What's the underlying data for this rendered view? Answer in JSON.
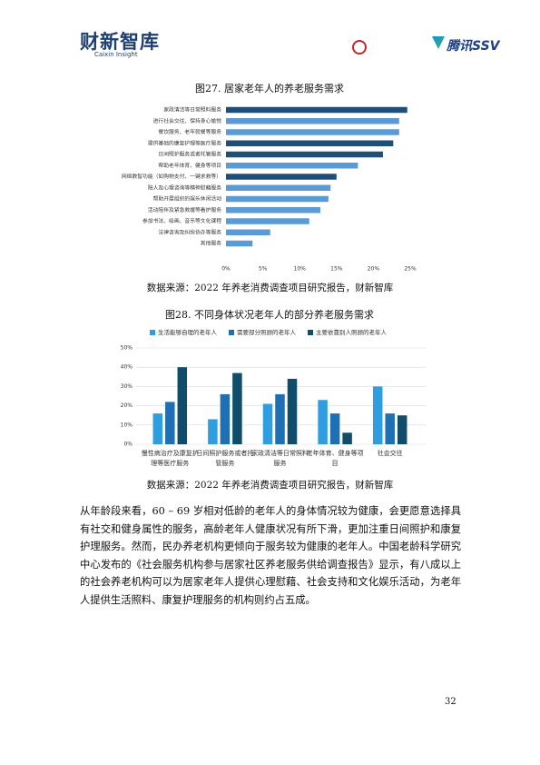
{
  "header": {
    "logo": "财新智库",
    "logo_sub": "Caixin Insight",
    "partner": "腾讯SSV"
  },
  "chart_data": [
    {
      "type": "barh",
      "title": "图27. 居家老年人的养老服务需求",
      "categories": [
        "家政清洁等日常照料服务",
        "进行社会交往、保持身心愉悦",
        "餐饮服务、老年就餐等服务",
        "提供基础的康复护理等医疗服务",
        "日间照护服务或者托管服务",
        "帮助老年体育、健身等项目",
        "网络数智功能（如购物支付、一键求救等）",
        "陪人及心理咨询等精神慰藉服务",
        "帮助开展组织的娱乐休闲活动",
        "活动陪伴及紧急救援等看护服务",
        "参加书法、绘画、音乐等文化课程",
        "法律咨询及纠纷协办等服务",
        "其他服务"
      ],
      "values": [
        24.6,
        23.5,
        23.5,
        22.7,
        21.3,
        17.9,
        15.0,
        14.2,
        13.9,
        12.8,
        11.3,
        6.0,
        3.6
      ],
      "colors": [
        "#1f4e79",
        "#5b9bd5",
        "#5b9bd5",
        "#1f4e79",
        "#1f4e79",
        "#5b9bd5",
        "#1f4e79",
        "#5b9bd5",
        "#5b9bd5",
        "#5b9bd5",
        "#5b9bd5",
        "#5b9bd5",
        "#5b9bd5"
      ],
      "xlim": [
        0,
        25
      ],
      "xticks": [
        {
          "value": 0,
          "label": "0%"
        },
        {
          "value": 5,
          "label": "5%"
        },
        {
          "value": 10,
          "label": "10%"
        },
        {
          "value": 15,
          "label": "15%"
        },
        {
          "value": 20,
          "label": "20%"
        },
        {
          "value": 25,
          "label": "25%"
        }
      ],
      "grid": false
    },
    {
      "type": "bar",
      "title": "图28. 不同身体状况老年人的部分养老服务需求",
      "categories": [
        "慢性病治疗及康复护理等医疗服务",
        "日间照护服务或者托管服务",
        "家政清洁等日常照料服务",
        "老年体育、健身等项目",
        "社会交往"
      ],
      "series": [
        {
          "name": "生活能够自理的老年人",
          "color": "#2e9ee0",
          "values": [
            16,
            13,
            21,
            23,
            30
          ]
        },
        {
          "name": "需要部分照顾的老年人",
          "color": "#1f6fb5",
          "values": [
            22,
            26,
            26,
            16,
            16
          ]
        },
        {
          "name": "主要依靠别人照顾的老年人",
          "color": "#0f4d6b",
          "values": [
            40,
            37,
            34,
            6,
            15
          ]
        }
      ],
      "ylim": [
        0,
        50
      ],
      "yticks": [
        {
          "value": 0,
          "label": "0%"
        },
        {
          "value": 10,
          "label": "10%"
        },
        {
          "value": 20,
          "label": "20%"
        },
        {
          "value": 30,
          "label": "30%"
        },
        {
          "value": 40,
          "label": "40%"
        },
        {
          "value": 50,
          "label": "50%"
        }
      ],
      "grid": true,
      "legend": "top"
    }
  ],
  "sources": [
    "数据来源：2022 年养老消费调查项目研究报告，财新智库",
    "数据来源：2022 年养老消费调查项目研究报告，财新智库"
  ],
  "body": "从年龄段来看，60 – 69 岁相对低龄的老年人的身体情况较为健康，会更愿意选择具有社交和健身属性的服务，高龄老年人健康状况有所下滑，更加注重日间照护和康复护理服务。然而，民办养老机构更倾向于服务较为健康的老年人。中国老龄科学研究中心发布的《社会服务机构参与居家社区养老服务供给调查报告》显示，有八成以上的社会养老机构可以为居家老年人提供心理慰藉、社会支持和文化娱乐活动，为老年人提供生活照料、康复护理服务的机构则约占五成。",
  "page_number": "32"
}
